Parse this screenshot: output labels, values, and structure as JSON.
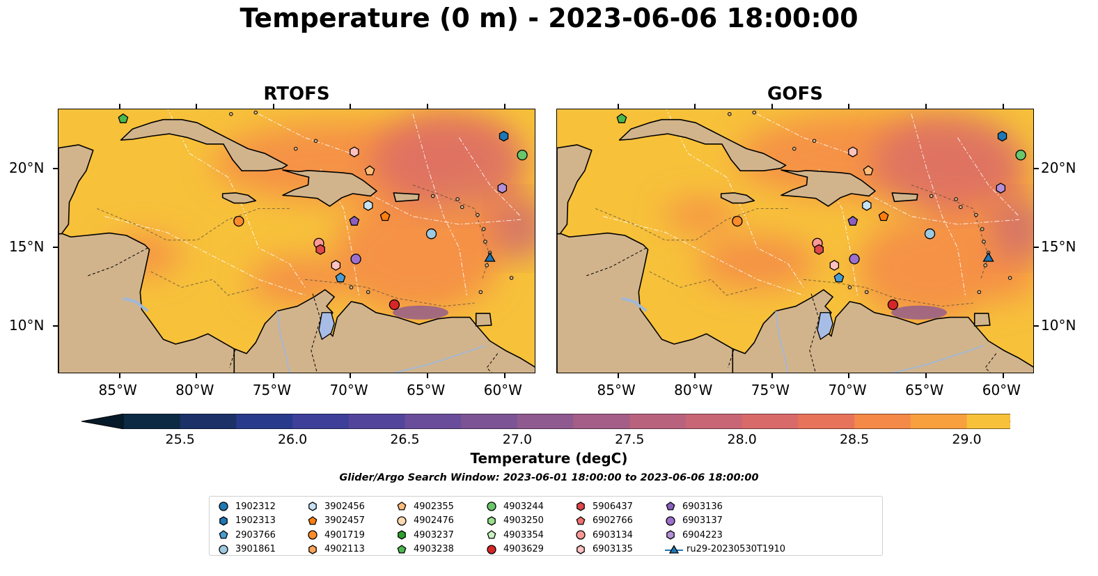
{
  "title": "Temperature (0 m) - 2023-06-06 18:00:00",
  "panels": [
    {
      "id": "rtofs",
      "title": "RTOFS",
      "warm_patches": [
        [
          0.6,
          0.2,
          0.55,
          0.3
        ],
        [
          0.75,
          0.55,
          0.35,
          0.45
        ],
        [
          0.18,
          0.55,
          0.15,
          0.15
        ],
        [
          0.8,
          0.15,
          0.3,
          0.25
        ],
        [
          0.5,
          0.65,
          0.2,
          0.18
        ],
        [
          0.92,
          0.4,
          0.12,
          0.3
        ]
      ]
    },
    {
      "id": "gofs",
      "title": "GOFS",
      "warm_patches": [
        [
          0.65,
          0.18,
          0.55,
          0.32
        ],
        [
          0.78,
          0.6,
          0.3,
          0.4
        ],
        [
          0.42,
          0.58,
          0.25,
          0.2
        ],
        [
          0.88,
          0.3,
          0.22,
          0.3
        ],
        [
          0.3,
          0.4,
          0.15,
          0.12
        ],
        [
          0.95,
          0.55,
          0.12,
          0.35
        ]
      ]
    }
  ],
  "axes": {
    "lon_range": [
      -89,
      -58
    ],
    "lat_range": [
      7,
      23.8
    ],
    "lon_ticks": [
      {
        "value": -85,
        "label": "85°W"
      },
      {
        "value": -80,
        "label": "80°W"
      },
      {
        "value": -75,
        "label": "75°W"
      },
      {
        "value": -70,
        "label": "70°W"
      },
      {
        "value": -65,
        "label": "65°W"
      },
      {
        "value": -60,
        "label": "60°W"
      }
    ],
    "lat_ticks": [
      {
        "value": 20,
        "label": "20°N"
      },
      {
        "value": 15,
        "label": "15°N"
      },
      {
        "value": 10,
        "label": "10°N"
      }
    ]
  },
  "colorbar": {
    "label": "Temperature (degC)",
    "min": 25.25,
    "max": 29.25,
    "step": 0.25,
    "ticks": [
      "25.5",
      "26.0",
      "26.5",
      "27.0",
      "27.5",
      "28.0",
      "28.5",
      "29.0"
    ],
    "colors": [
      "#0d2a45",
      "#1b3168",
      "#283a8c",
      "#3d3f99",
      "#52449b",
      "#6a4d9a",
      "#7c5394",
      "#8f5a8f",
      "#a45e88",
      "#b8627e",
      "#c96676",
      "#d86b6a",
      "#e8735b",
      "#f48948",
      "#f9a03e",
      "#f7c13a",
      "#eef04a"
    ],
    "under_color": "#061928",
    "over_color": "#eef04a",
    "land_color": "#d2b48c"
  },
  "search_window": "Glider/Argo Search Window: 2023-06-01 18:00:00 to 2023-06-06 18:00:00",
  "legend": [
    {
      "label": "1902312",
      "marker": "circle",
      "color": "#1f77b4"
    },
    {
      "label": "1902313",
      "marker": "hexagon",
      "color": "#1f77b4"
    },
    {
      "label": "2903766",
      "marker": "pentagon",
      "color": "#4a9bd0"
    },
    {
      "label": "3901861",
      "marker": "circle",
      "color": "#9ecae1"
    },
    {
      "label": "3902456",
      "marker": "hexagon",
      "color": "#c6e2f5"
    },
    {
      "label": "3902457",
      "marker": "pentagon",
      "color": "#ff7f0e"
    },
    {
      "label": "4901719",
      "marker": "circle",
      "color": "#ff8c2a"
    },
    {
      "label": "4902113",
      "marker": "hexagon",
      "color": "#ffa55a"
    },
    {
      "label": "4902355",
      "marker": "pentagon",
      "color": "#ffbb78"
    },
    {
      "label": "4902476",
      "marker": "circle",
      "color": "#ffd9b3"
    },
    {
      "label": "4903237",
      "marker": "hexagon",
      "color": "#2ca02c"
    },
    {
      "label": "4903238",
      "marker": "pentagon",
      "color": "#4cb84c"
    },
    {
      "label": "4903244",
      "marker": "circle",
      "color": "#69c66b"
    },
    {
      "label": "4903250",
      "marker": "hexagon",
      "color": "#98df8a"
    },
    {
      "label": "4903354",
      "marker": "pentagon",
      "color": "#c7f2c0"
    },
    {
      "label": "4903629",
      "marker": "circle",
      "color": "#d62728"
    },
    {
      "label": "5906437",
      "marker": "hexagon",
      "color": "#e0474a"
    },
    {
      "label": "6902766",
      "marker": "pentagon",
      "color": "#f07070"
    },
    {
      "label": "6903134",
      "marker": "circle",
      "color": "#ff9896"
    },
    {
      "label": "6903135",
      "marker": "hexagon",
      "color": "#ffc2c0"
    },
    {
      "label": "6903136",
      "marker": "pentagon",
      "color": "#8c5fbf"
    },
    {
      "label": "6903137",
      "marker": "circle",
      "color": "#9c70cc"
    },
    {
      "label": "6904223",
      "marker": "hexagon",
      "color": "#b590d9"
    },
    {
      "label": "ru29-20230530T1910",
      "marker": "triangle-line",
      "color": "#1f77b4"
    }
  ],
  "observations": [
    {
      "id": "4903238",
      "marker": "pentagon",
      "color": "#4cb84c",
      "lon": -84.8,
      "lat": 23.2
    },
    {
      "id": "1902313",
      "marker": "hexagon",
      "color": "#1f77b4",
      "lon": -60.1,
      "lat": 22.1
    },
    {
      "id": "4903244",
      "marker": "circle",
      "color": "#69c66b",
      "lon": -58.9,
      "lat": 20.9
    },
    {
      "id": "6903135",
      "marker": "hexagon",
      "color": "#ffc2c0",
      "lon": -69.8,
      "lat": 21.1
    },
    {
      "id": "4902355",
      "marker": "pentagon",
      "color": "#ffbb78",
      "lon": -68.8,
      "lat": 19.9
    },
    {
      "id": "6904223",
      "marker": "hexagon",
      "color": "#b590d9",
      "lon": -60.2,
      "lat": 18.8
    },
    {
      "id": "3902456",
      "marker": "hexagon",
      "color": "#c6e2f5",
      "lon": -68.9,
      "lat": 17.7
    },
    {
      "id": "3902457",
      "marker": "pentagon",
      "color": "#ff7f0e",
      "lon": -67.8,
      "lat": 17.0
    },
    {
      "id": "6903136",
      "marker": "pentagon",
      "color": "#8c5fbf",
      "lon": -69.8,
      "lat": 16.7
    },
    {
      "id": "4901719",
      "marker": "circle",
      "color": "#ff8c2a",
      "lon": -77.3,
      "lat": 16.7
    },
    {
      "id": "3901861",
      "marker": "circle",
      "color": "#9ecae1",
      "lon": -64.8,
      "lat": 15.9
    },
    {
      "id": "6903134",
      "marker": "circle",
      "color": "#ff9896",
      "lon": -72.1,
      "lat": 15.3
    },
    {
      "id": "5906437",
      "marker": "hexagon",
      "color": "#e0474a",
      "lon": -72.0,
      "lat": 14.9
    },
    {
      "id": "6903137",
      "marker": "circle",
      "color": "#9c70cc",
      "lon": -69.7,
      "lat": 14.3
    },
    {
      "id": "6903135b",
      "marker": "hexagon",
      "color": "#ffc2c0",
      "lon": -71.0,
      "lat": 13.9
    },
    {
      "id": "ru29-20230530T1910",
      "marker": "triangle",
      "color": "#1f77b4",
      "lon": -61.0,
      "lat": 14.4
    },
    {
      "id": "2903766",
      "marker": "pentagon",
      "color": "#4a9bd0",
      "lon": -70.7,
      "lat": 13.1
    },
    {
      "id": "4903629",
      "marker": "circle",
      "color": "#d62728",
      "lon": -67.2,
      "lat": 11.4
    }
  ]
}
